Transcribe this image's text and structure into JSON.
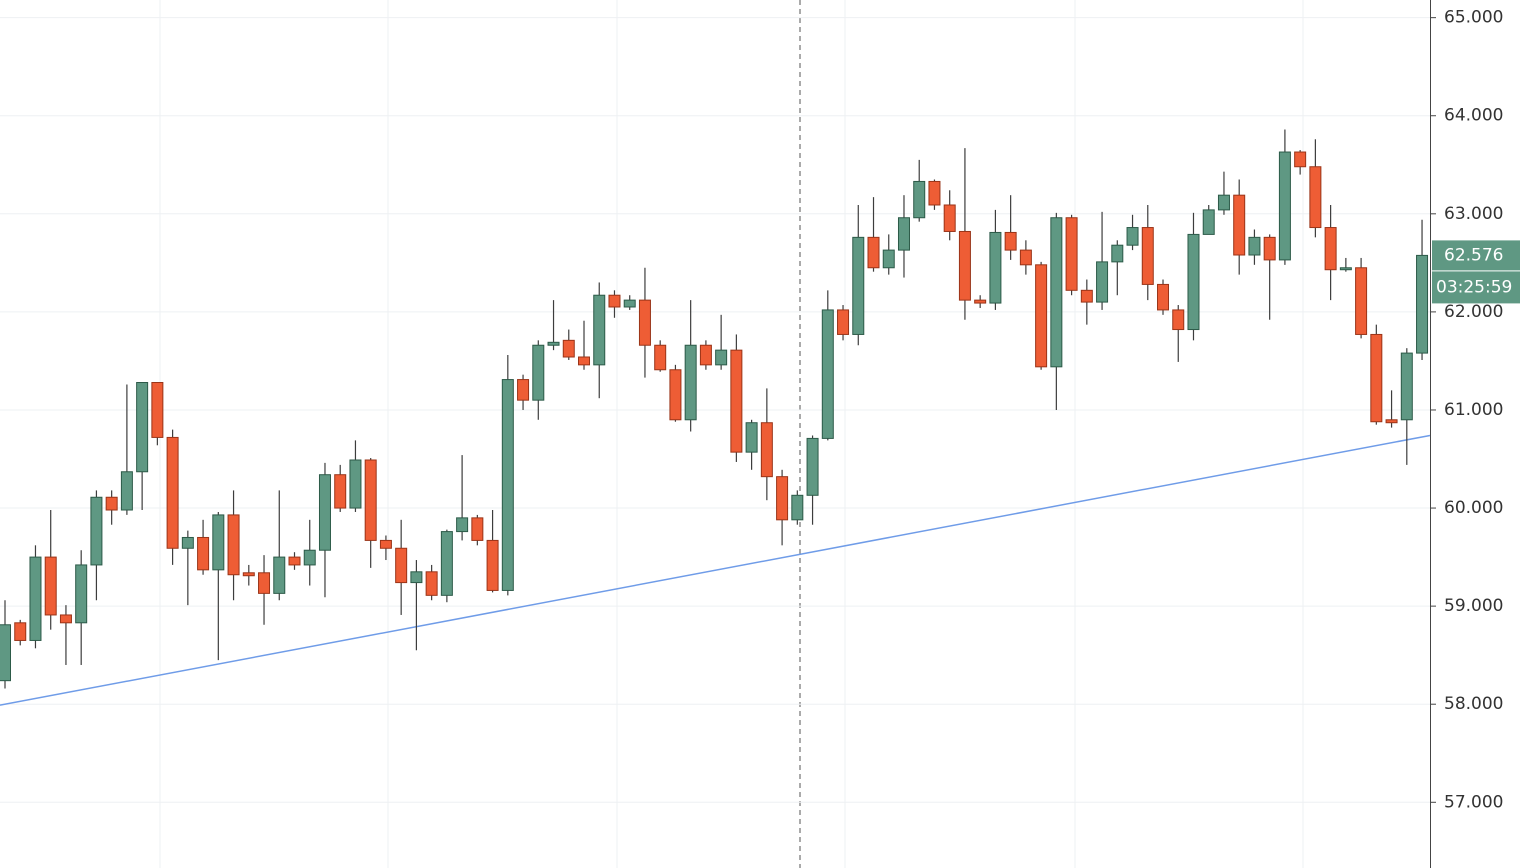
{
  "chart_data": {
    "type": "candlestick",
    "up_color": "#5f9883",
    "down_color": "#ee5d35",
    "ylim": [
      56.33,
      65.18
    ],
    "yticks": [
      {
        "value": 57,
        "label": "57.000"
      },
      {
        "value": 58,
        "label": "58.000"
      },
      {
        "value": 59,
        "label": "59.000"
      },
      {
        "value": 60,
        "label": "60.000"
      },
      {
        "value": 61,
        "label": "61.000"
      },
      {
        "value": 62,
        "label": "62.000"
      },
      {
        "value": 63,
        "label": "63.000"
      },
      {
        "value": 64,
        "label": "64.000"
      },
      {
        "value": 65,
        "label": "65.000"
      }
    ],
    "grid": true,
    "open": [
      58.24,
      58.83,
      58.65,
      59.5,
      58.91,
      58.83,
      59.42,
      60.11,
      59.98,
      60.37,
      61.28,
      60.72,
      59.59,
      59.7,
      59.37,
      59.93,
      59.34,
      59.34,
      59.13,
      59.5,
      59.42,
      59.57,
      60.34,
      60.0,
      60.49,
      59.67,
      59.59,
      59.24,
      59.35,
      59.11,
      59.76,
      59.9,
      59.67,
      59.16,
      61.31,
      61.1,
      61.66,
      61.71,
      61.54,
      61.46,
      62.17,
      62.05,
      62.12,
      61.66,
      61.41,
      60.9,
      61.66,
      61.46,
      61.61,
      60.57,
      60.87,
      60.32,
      59.88,
      60.13,
      60.71,
      62.02,
      61.77,
      62.76,
      62.45,
      62.63,
      62.96,
      63.33,
      63.09,
      62.82,
      62.12,
      62.09,
      62.81,
      62.63,
      62.48,
      61.44,
      62.96,
      62.22,
      62.1,
      62.51,
      62.68,
      62.86,
      62.28,
      62.02,
      61.82,
      62.79,
      63.04,
      63.19,
      62.58,
      62.76,
      62.53,
      63.63,
      63.48,
      62.86,
      62.43,
      62.45,
      61.77,
      60.9,
      60.9,
      61.58
    ],
    "high": [
      59.06,
      58.86,
      59.62,
      59.98,
      59.01,
      59.57,
      60.18,
      60.18,
      61.26,
      61.28,
      61.28,
      60.8,
      59.77,
      59.88,
      59.96,
      60.18,
      59.42,
      59.52,
      60.18,
      59.55,
      59.88,
      60.46,
      60.44,
      60.69,
      60.51,
      59.72,
      59.88,
      59.47,
      59.42,
      59.78,
      60.54,
      59.93,
      59.98,
      61.56,
      61.36,
      61.71,
      62.12,
      61.82,
      61.91,
      62.3,
      62.22,
      62.17,
      62.45,
      61.71,
      61.46,
      62.12,
      61.71,
      61.97,
      61.77,
      60.9,
      61.22,
      60.39,
      60.18,
      60.74,
      62.22,
      62.07,
      63.09,
      63.17,
      62.79,
      63.19,
      63.55,
      63.35,
      63.24,
      63.67,
      62.17,
      63.04,
      63.19,
      62.73,
      62.51,
      63.01,
      62.99,
      62.33,
      63.02,
      62.73,
      62.99,
      63.09,
      62.33,
      62.07,
      63.01,
      63.09,
      63.43,
      63.35,
      62.84,
      62.79,
      63.86,
      63.65,
      63.76,
      63.09,
      62.55,
      62.55,
      61.87,
      61.2,
      61.63,
      62.94
    ],
    "low": [
      58.16,
      58.6,
      58.57,
      58.76,
      58.4,
      58.4,
      59.06,
      59.83,
      59.93,
      59.98,
      60.64,
      59.42,
      59.01,
      59.32,
      58.45,
      59.06,
      59.21,
      58.81,
      59.06,
      59.37,
      59.21,
      59.09,
      59.96,
      59.96,
      59.39,
      59.47,
      58.91,
      58.55,
      59.06,
      59.04,
      59.67,
      59.62,
      59.14,
      59.11,
      61.0,
      60.9,
      61.61,
      61.51,
      61.41,
      61.12,
      61.94,
      62.02,
      61.33,
      61.39,
      60.88,
      60.78,
      61.41,
      61.41,
      60.47,
      60.39,
      60.08,
      59.62,
      59.83,
      59.83,
      60.69,
      61.71,
      61.66,
      62.41,
      62.38,
      62.35,
      62.92,
      63.04,
      62.73,
      61.92,
      62.04,
      62.02,
      62.53,
      62.38,
      61.41,
      61.0,
      62.17,
      61.87,
      62.02,
      62.17,
      62.63,
      62.12,
      61.97,
      61.49,
      61.71,
      62.79,
      62.99,
      62.38,
      62.48,
      61.92,
      62.48,
      63.4,
      62.76,
      62.12,
      62.41,
      61.73,
      60.85,
      60.82,
      60.44,
      61.51
    ],
    "close": [
      58.81,
      58.65,
      59.5,
      58.91,
      58.83,
      59.42,
      60.11,
      59.98,
      60.37,
      61.28,
      60.72,
      59.59,
      59.7,
      59.37,
      59.93,
      59.32,
      59.31,
      59.13,
      59.5,
      59.42,
      59.57,
      60.34,
      60.0,
      60.49,
      59.67,
      59.59,
      59.24,
      59.35,
      59.11,
      59.76,
      59.9,
      59.67,
      59.16,
      61.31,
      61.1,
      61.66,
      61.69,
      61.54,
      61.46,
      62.17,
      62.05,
      62.12,
      61.66,
      61.41,
      60.9,
      61.66,
      61.46,
      61.61,
      60.57,
      60.87,
      60.32,
      59.88,
      60.13,
      60.71,
      62.02,
      61.77,
      62.76,
      62.45,
      62.63,
      62.96,
      63.33,
      63.09,
      62.82,
      62.12,
      62.09,
      62.81,
      62.63,
      62.48,
      61.44,
      62.96,
      62.22,
      62.1,
      62.51,
      62.68,
      62.86,
      62.28,
      62.02,
      61.82,
      62.79,
      63.04,
      63.19,
      62.58,
      62.76,
      62.53,
      63.63,
      63.48,
      62.86,
      62.43,
      62.45,
      61.77,
      60.88,
      60.87,
      61.58,
      62.576
    ],
    "trendline": {
      "values": [
        57.99,
        60.74
      ],
      "color": "#6f9ce8"
    },
    "last_price": 62.576,
    "countdown": "03:25:59"
  }
}
